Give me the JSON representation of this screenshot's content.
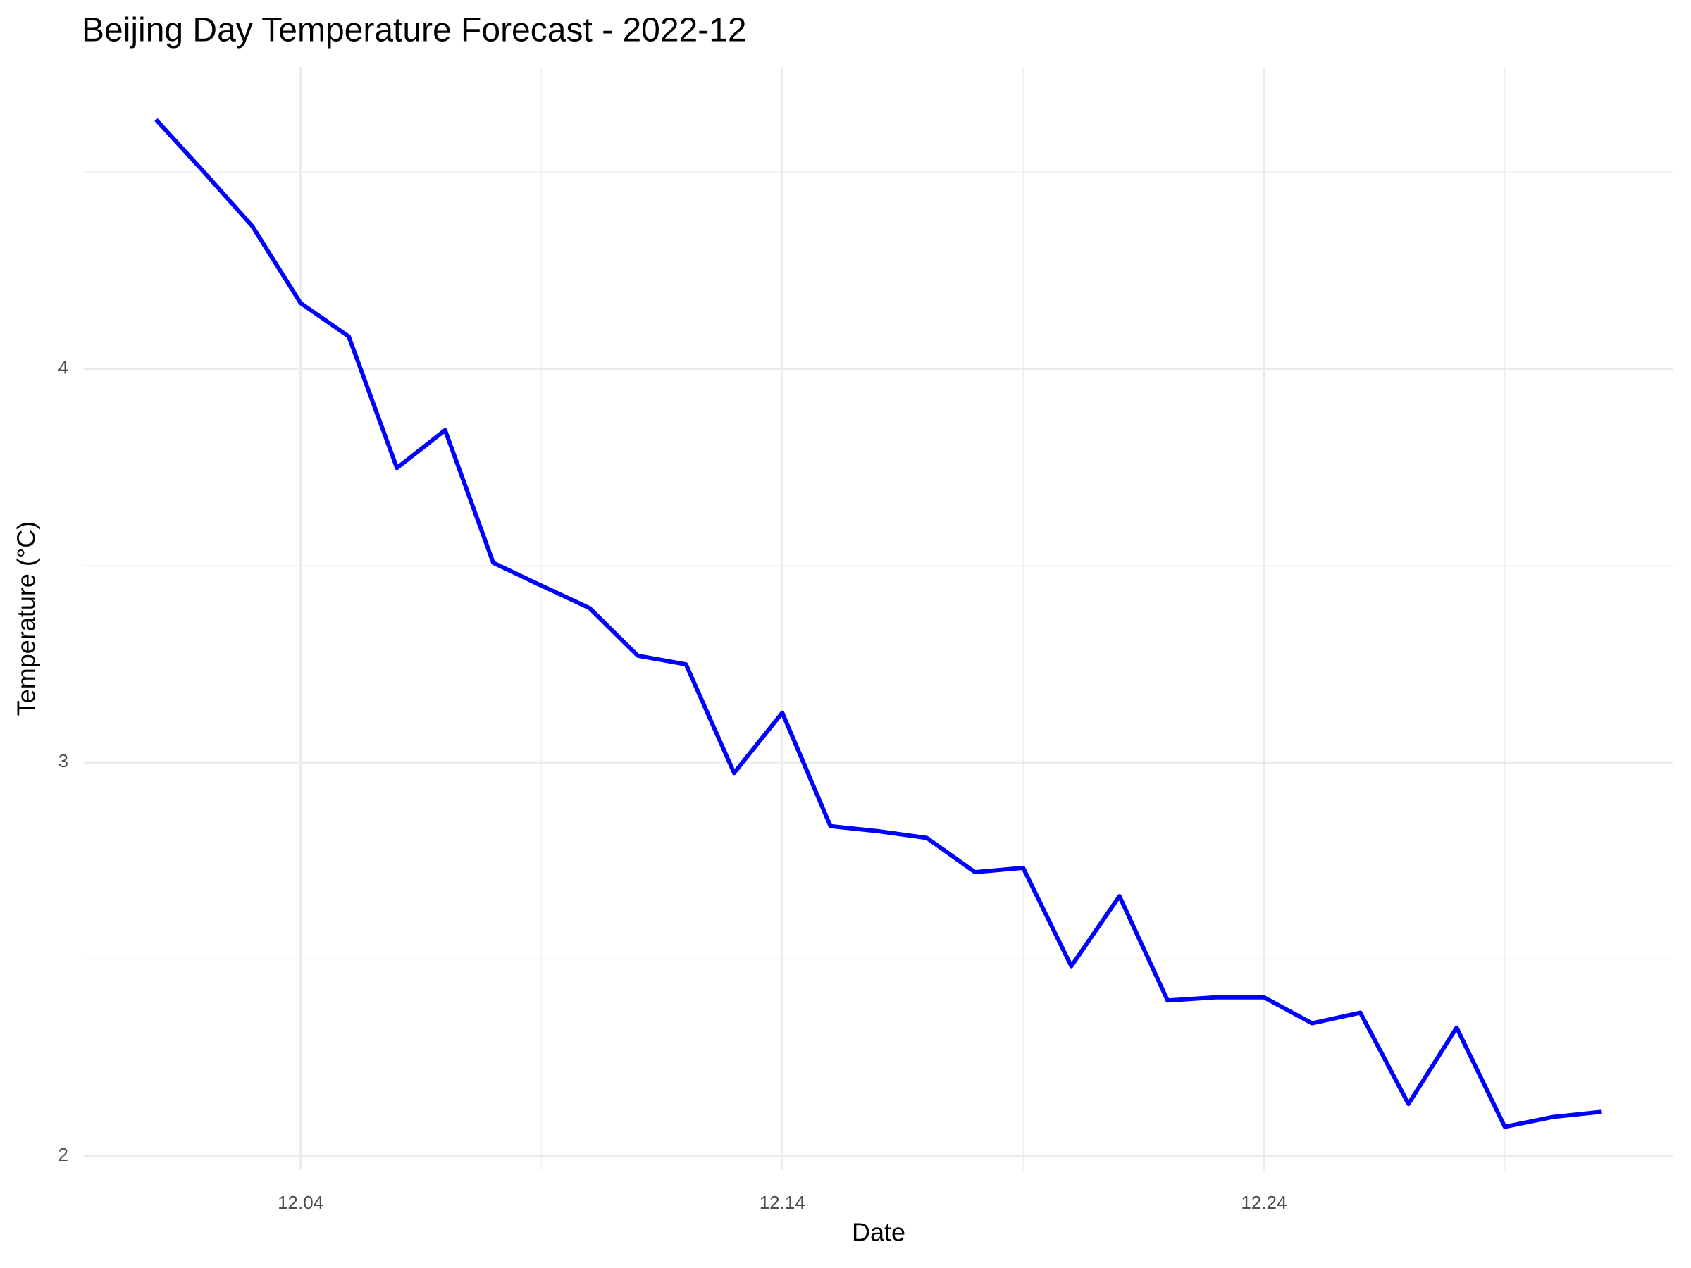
{
  "chart_data": {
    "type": "line",
    "title": "Beijing Day Temperature Forecast - 2022-12",
    "x_label": "Date",
    "y_label": "Temperature (°C)",
    "x": [
      1,
      2,
      3,
      4,
      5,
      6,
      7,
      8,
      9,
      10,
      11,
      12,
      13,
      14,
      15,
      16,
      17,
      18,
      19,
      20,
      21,
      22,
      23,
      24,
      25,
      26,
      27,
      28,
      29,
      30,
      31
    ],
    "series": [
      {
        "name": "Temperature",
        "color": "#0000ff",
        "values": [
          4.633,
          4.499,
          4.362,
          4.167,
          4.082,
          3.748,
          3.844,
          3.507,
          3.449,
          3.392,
          3.271,
          3.249,
          2.973,
          3.126,
          2.838,
          2.825,
          2.808,
          2.721,
          2.732,
          2.482,
          2.66,
          2.395,
          2.403,
          2.403,
          2.337,
          2.364,
          2.132,
          2.326,
          2.074,
          2.099,
          2.112
        ]
      }
    ],
    "xlim": [
      -0.5,
      32.5
    ],
    "xticks": [
      {
        "value": 4,
        "label": "12.04"
      },
      {
        "value": 14,
        "label": "12.14"
      },
      {
        "value": 24,
        "label": "12.24"
      }
    ],
    "xminor": [
      9,
      19,
      29
    ],
    "ylim": [
      1.964,
      4.767
    ],
    "yticks": [
      2,
      3,
      4
    ],
    "yminor": [
      2.5,
      3.5,
      4.5
    ],
    "grid": true
  }
}
